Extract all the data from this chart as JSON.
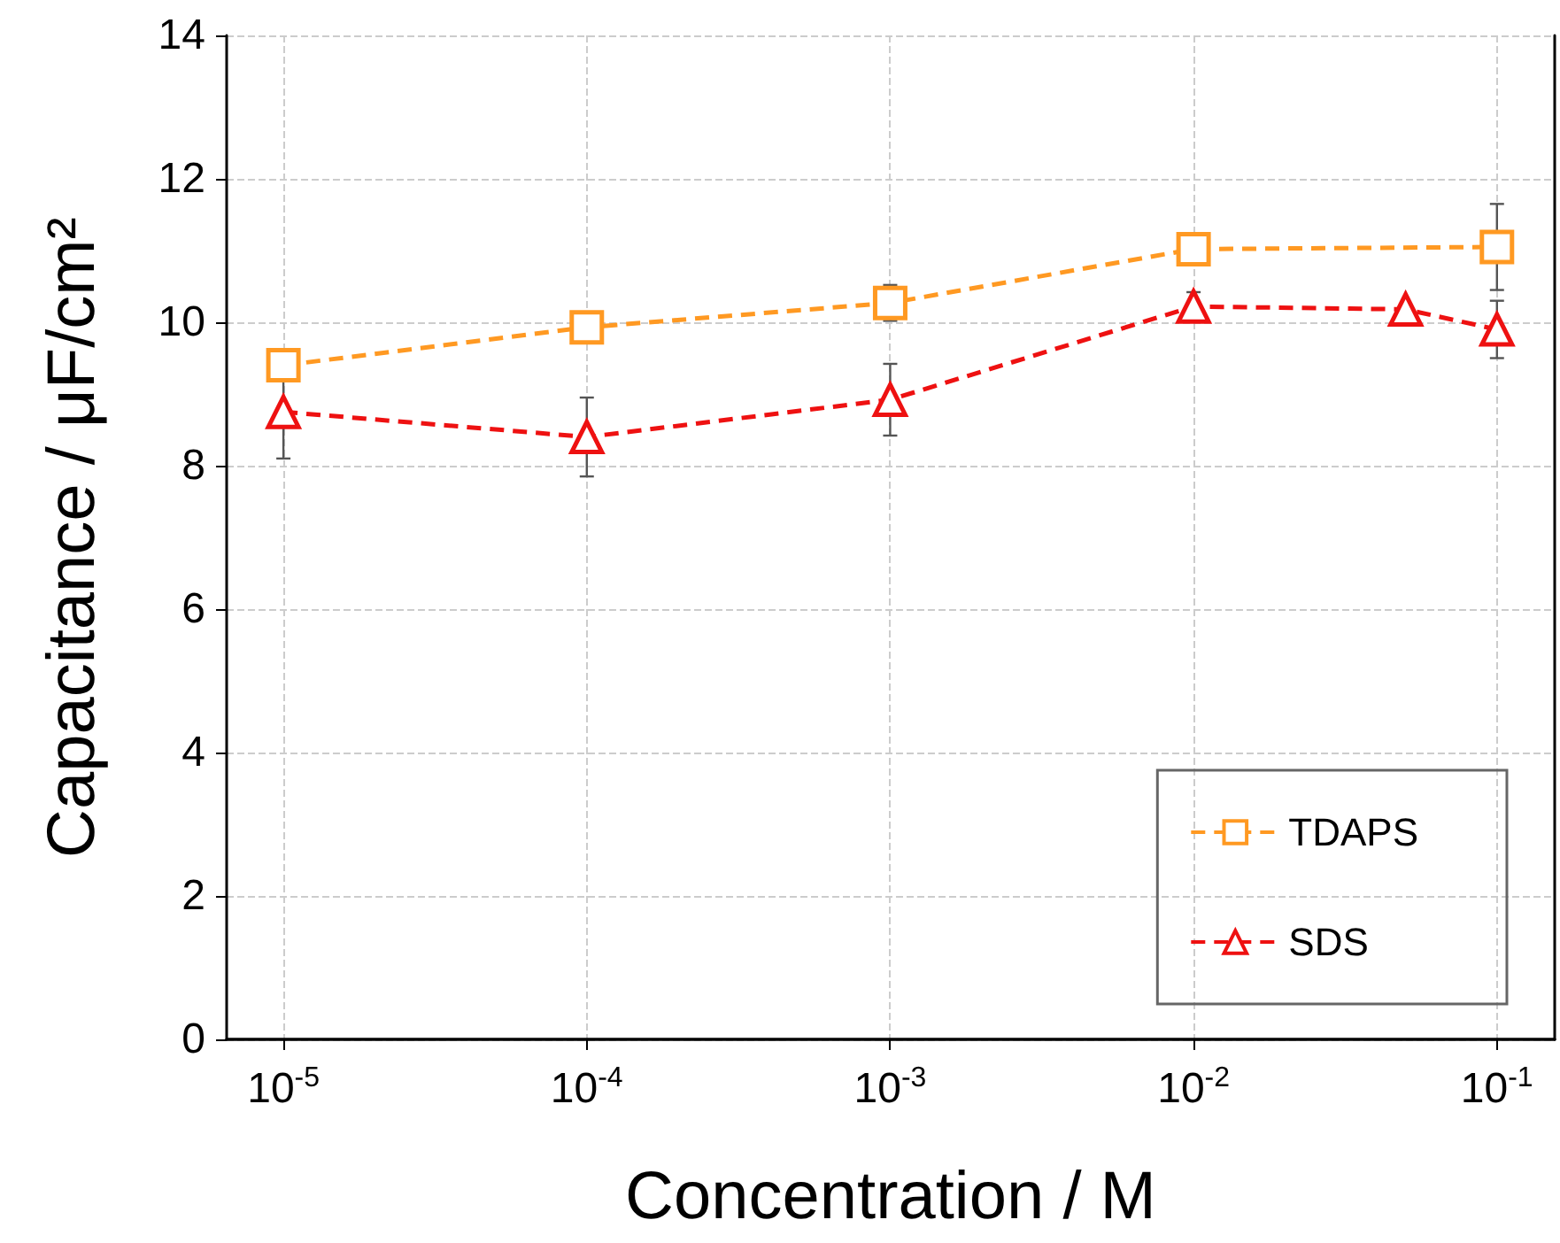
{
  "chart_data": {
    "type": "line",
    "xlabel": "Concentration / M",
    "ylabel": "Capacitance / μF/cm²",
    "log": "x",
    "xlim": [
      6.5e-06,
      0.155
    ],
    "xticks": [
      {
        "value": 1e-05,
        "label": "10$^{-5}$"
      },
      {
        "value": 0.0001,
        "label": "10$^{-4}$"
      },
      {
        "value": 0.001,
        "label": "10$^{-3}$"
      },
      {
        "value": 0.01,
        "label": "10$^{-2}$"
      },
      {
        "value": 0.1,
        "label": "10$^{-1}$"
      }
    ],
    "ylim": [
      0,
      14
    ],
    "yticks": [
      0,
      2,
      4,
      6,
      8,
      10,
      12,
      14
    ],
    "grid": true,
    "legend": "bottom right",
    "line_style": "dashed",
    "series": [
      {
        "name": "TDAPS",
        "color": "#ff9922",
        "marker": "square",
        "x": [
          1e-05,
          0.0001,
          0.001,
          0.01,
          0.1
        ],
        "values": [
          9.4,
          9.93,
          10.27,
          11.02,
          11.05
        ],
        "errors": [
          null,
          null,
          0.25,
          null,
          0.6
        ]
      },
      {
        "name": "SDS",
        "color": "#ee1111",
        "marker": "triangle",
        "x": [
          1e-05,
          0.0001,
          0.001,
          0.01,
          0.05,
          0.1
        ],
        "values": [
          8.75,
          8.4,
          8.92,
          10.22,
          10.18,
          9.9
        ],
        "errors": [
          0.65,
          0.55,
          0.5,
          0.2,
          null,
          0.4
        ]
      }
    ]
  }
}
